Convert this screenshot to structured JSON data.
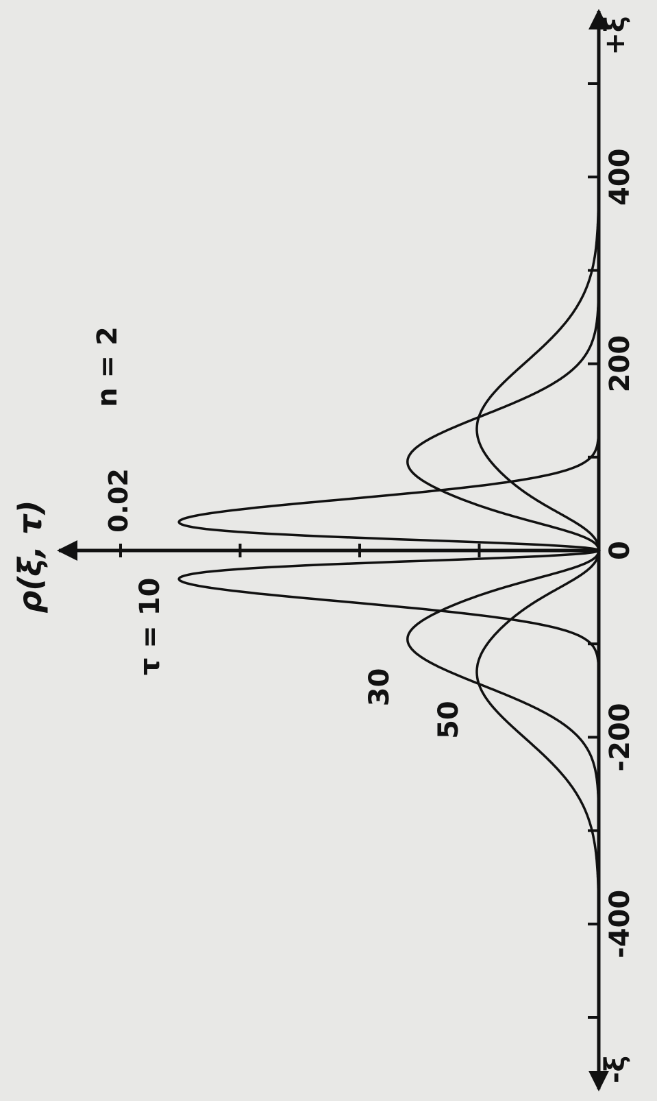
{
  "chart_data": {
    "type": "line",
    "orientation": "rotated-90-clockwise",
    "ylabel": "ρ(ξ, τ)",
    "x_axis_labels": {
      "negative": "-ξ",
      "positive": "+ξ"
    },
    "parameter_label": "n = 2",
    "xlim": [
      -500,
      500
    ],
    "ylim": [
      0,
      0.02
    ],
    "x_ticks": [
      -500,
      -400,
      -300,
      -200,
      -100,
      0,
      100,
      200,
      300,
      400,
      500
    ],
    "x_tick_labels": [
      {
        "value": -400,
        "text": "-400"
      },
      {
        "value": -200,
        "text": "-200"
      },
      {
        "value": 0,
        "text": "0"
      },
      {
        "value": 200,
        "text": "200"
      },
      {
        "value": 400,
        "text": "400"
      }
    ],
    "y_ticks": [
      0.005,
      0.01,
      0.015,
      0.02
    ],
    "y_tick_label": {
      "value": 0.02,
      "text": "0.02"
    },
    "series": [
      {
        "name": "τ = 10",
        "label_position": "peak",
        "peak_x": 30,
        "peak_y": 0.0176,
        "width": 35,
        "sample_y": [
          0,
          0.0095,
          0.0176,
          0.0095,
          0.0012,
          0
        ]
      },
      {
        "name": "30",
        "label_position": "peak",
        "peak_x": 95,
        "peak_y": 0.008,
        "width": 70,
        "sample_y": [
          0,
          0.0031,
          0.0062,
          0.008,
          0.0062,
          0.0031,
          0
        ]
      },
      {
        "name": "50",
        "label_position": "peak",
        "peak_x": 130,
        "peak_y": 0.0051,
        "width": 100,
        "sample_y": [
          0,
          0.0022,
          0.0043,
          0.0051,
          0.0043,
          0.0022,
          0
        ]
      }
    ],
    "grid": false,
    "legend": "none"
  }
}
